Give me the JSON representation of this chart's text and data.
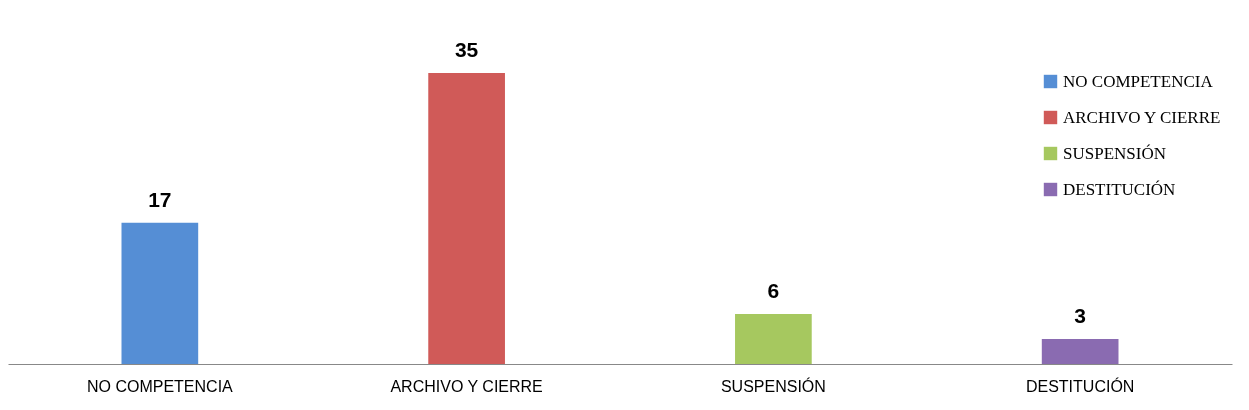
{
  "chart_data": {
    "type": "bar",
    "categories": [
      "NO COMPETENCIA",
      "ARCHIVO Y CIERRE",
      "SUSPENSIÓN",
      "DESTITUCIÓN"
    ],
    "series": [
      {
        "name": "NO COMPETENCIA",
        "color": "#558ed5",
        "values": [
          17,
          null,
          null,
          null
        ]
      },
      {
        "name": "ARCHIVO Y CIERRE",
        "color": "#d05a58",
        "values": [
          null,
          35,
          null,
          null
        ]
      },
      {
        "name": "SUSPENSIÓN",
        "color": "#a6c85f",
        "values": [
          null,
          null,
          6,
          null
        ]
      },
      {
        "name": "DESTITUCIÓN",
        "color": "#8a6bb1",
        "values": [
          null,
          null,
          null,
          3
        ]
      }
    ],
    "data_labels": true,
    "legend": "top right"
  }
}
